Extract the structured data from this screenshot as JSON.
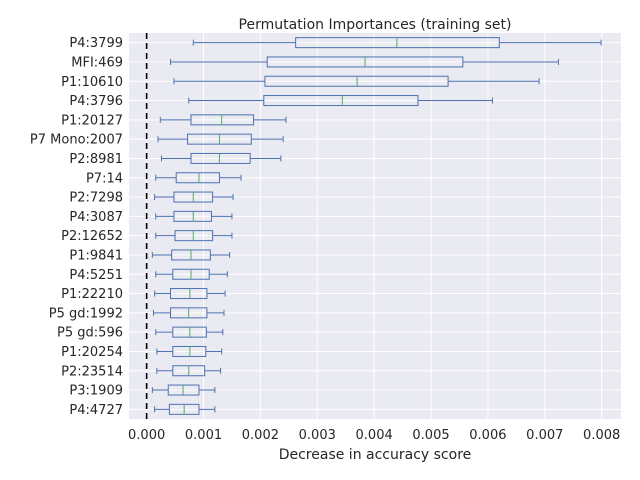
{
  "chart_data": {
    "type": "box",
    "orientation": "horizontal",
    "title": "Permutation Importances (training set)",
    "xlabel": "Decrease in accuracy score",
    "ylabel": "",
    "xlim": [
      -0.00031,
      0.00834
    ],
    "xticks": [
      0,
      0.001,
      0.002,
      0.003,
      0.004,
      0.005,
      0.006,
      0.007,
      0.008
    ],
    "xtick_labels": [
      "0.000",
      "0.001",
      "0.002",
      "0.003",
      "0.004",
      "0.005",
      "0.006",
      "0.007",
      "0.008"
    ],
    "reference_line": 0,
    "grid": true,
    "colors": {
      "background": "#eaeaf2",
      "grid": "#ffffff",
      "box": "#4c72b0",
      "median": "#55a868",
      "reference": "#000000"
    },
    "categories": [
      "P4:3799",
      "MFI:469",
      "P1:10610",
      "P4:3796",
      "P1:20127",
      "P7 Mono:2007",
      "P2:8981",
      "P7:14",
      "P2:7298",
      "P4:3087",
      "P2:12652",
      "P1:9841",
      "P4:5251",
      "P1:22210",
      "P5 gd:1992",
      "P5 gd:596",
      "P1:20254",
      "P2:23514",
      "P3:1909",
      "P4:4727"
    ],
    "boxes": [
      {
        "whisker_low": 0.00082,
        "q1": 0.00262,
        "median": 0.0044,
        "q3": 0.0062,
        "whisker_high": 0.00799
      },
      {
        "whisker_low": 0.00042,
        "q1": 0.00212,
        "median": 0.00384,
        "q3": 0.00556,
        "whisker_high": 0.00724
      },
      {
        "whisker_low": 0.00048,
        "q1": 0.00208,
        "median": 0.0037,
        "q3": 0.0053,
        "whisker_high": 0.0069
      },
      {
        "whisker_low": 0.00074,
        "q1": 0.00206,
        "median": 0.00344,
        "q3": 0.00477,
        "whisker_high": 0.00608
      },
      {
        "whisker_low": 0.00024,
        "q1": 0.00078,
        "median": 0.00132,
        "q3": 0.00188,
        "whisker_high": 0.00245
      },
      {
        "whisker_low": 0.0002,
        "q1": 0.00072,
        "median": 0.00128,
        "q3": 0.00184,
        "whisker_high": 0.0024
      },
      {
        "whisker_low": 0.00026,
        "q1": 0.00078,
        "median": 0.00128,
        "q3": 0.00182,
        "whisker_high": 0.00236
      },
      {
        "whisker_low": 0.00016,
        "q1": 0.00052,
        "median": 0.00092,
        "q3": 0.00128,
        "whisker_high": 0.00166
      },
      {
        "whisker_low": 0.00014,
        "q1": 0.00048,
        "median": 0.00082,
        "q3": 0.00116,
        "whisker_high": 0.00152
      },
      {
        "whisker_low": 0.00016,
        "q1": 0.00048,
        "median": 0.00082,
        "q3": 0.00114,
        "whisker_high": 0.0015
      },
      {
        "whisker_low": 0.00016,
        "q1": 0.0005,
        "median": 0.00082,
        "q3": 0.00116,
        "whisker_high": 0.0015
      },
      {
        "whisker_low": 0.0001,
        "q1": 0.00044,
        "median": 0.00078,
        "q3": 0.00112,
        "whisker_high": 0.00146
      },
      {
        "whisker_low": 0.00016,
        "q1": 0.00046,
        "median": 0.00078,
        "q3": 0.0011,
        "whisker_high": 0.00142
      },
      {
        "whisker_low": 0.00014,
        "q1": 0.00042,
        "median": 0.00076,
        "q3": 0.00106,
        "whisker_high": 0.00138
      },
      {
        "whisker_low": 0.00012,
        "q1": 0.00042,
        "median": 0.00074,
        "q3": 0.00106,
        "whisker_high": 0.00136
      },
      {
        "whisker_low": 0.00016,
        "q1": 0.00046,
        "median": 0.00076,
        "q3": 0.00105,
        "whisker_high": 0.00134
      },
      {
        "whisker_low": 0.00018,
        "q1": 0.00046,
        "median": 0.00076,
        "q3": 0.00104,
        "whisker_high": 0.00132
      },
      {
        "whisker_low": 0.00018,
        "q1": 0.00046,
        "median": 0.00074,
        "q3": 0.00102,
        "whisker_high": 0.0013
      },
      {
        "whisker_low": 0.0001,
        "q1": 0.00038,
        "median": 0.00064,
        "q3": 0.00092,
        "whisker_high": 0.0012
      },
      {
        "whisker_low": 0.00014,
        "q1": 0.0004,
        "median": 0.00066,
        "q3": 0.00092,
        "whisker_high": 0.0012
      }
    ]
  }
}
